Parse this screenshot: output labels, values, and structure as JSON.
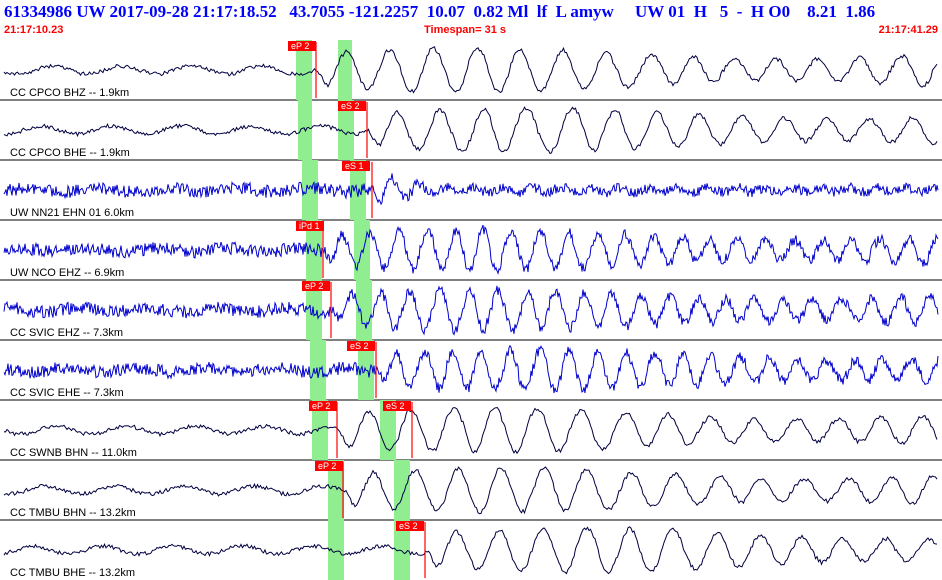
{
  "header": {
    "event_line": "61334986 UW 2017-09-28 21:17:18.52   43.7055 -121.2257  10.07  0.82 Ml  lf  L amyw     UW 01  H   5  -  H O0    8.21  1.86",
    "start_time": "21:17:10.23",
    "timespan": "Timespan=  31 s",
    "end_time": "21:17:41.29"
  },
  "colors": {
    "header": "#0000ff",
    "time_text": "#ff0000",
    "pick_box": "#ff0000",
    "pick_window": "#90ee90",
    "trace_black": "#000040",
    "trace_blue": "#0000cc"
  },
  "traces": [
    {
      "label": "CC CPCO BHZ -- 1.9km",
      "color": "black",
      "pick": {
        "label": "eP 2"
      },
      "pick2": null
    },
    {
      "label": "CC CPCO BHE -- 1.9km",
      "color": "black",
      "pick": {
        "label": "eS 2"
      },
      "pick2": null
    },
    {
      "label": "UW NN21 EHN 01 6.0km",
      "color": "blue",
      "pick": {
        "label": "eS 1"
      },
      "pick2": null
    },
    {
      "label": "UW NCO EHZ -- 6.9km",
      "color": "blue",
      "pick": {
        "label": "iPd 1"
      },
      "pick2": null
    },
    {
      "label": "CC SVIC EHZ -- 7.3km",
      "color": "blue",
      "pick": {
        "label": "eP 2"
      },
      "pick2": null
    },
    {
      "label": "CC SVIC EHE -- 7.3km",
      "color": "blue",
      "pick": {
        "label": "eS 2"
      },
      "pick2": null
    },
    {
      "label": "CC SWNB BHN -- 11.0km",
      "color": "black",
      "pick": {
        "label": "eP 2"
      },
      "pick2": {
        "label": "eS 2"
      }
    },
    {
      "label": "CC TMBU BHN -- 13.2km",
      "color": "black",
      "pick": {
        "label": "eP 2"
      },
      "pick2": null
    },
    {
      "label": "CC TMBU BHE -- 13.2km",
      "color": "black",
      "pick": {
        "label": "eS 2"
      },
      "pick2": null
    }
  ]
}
